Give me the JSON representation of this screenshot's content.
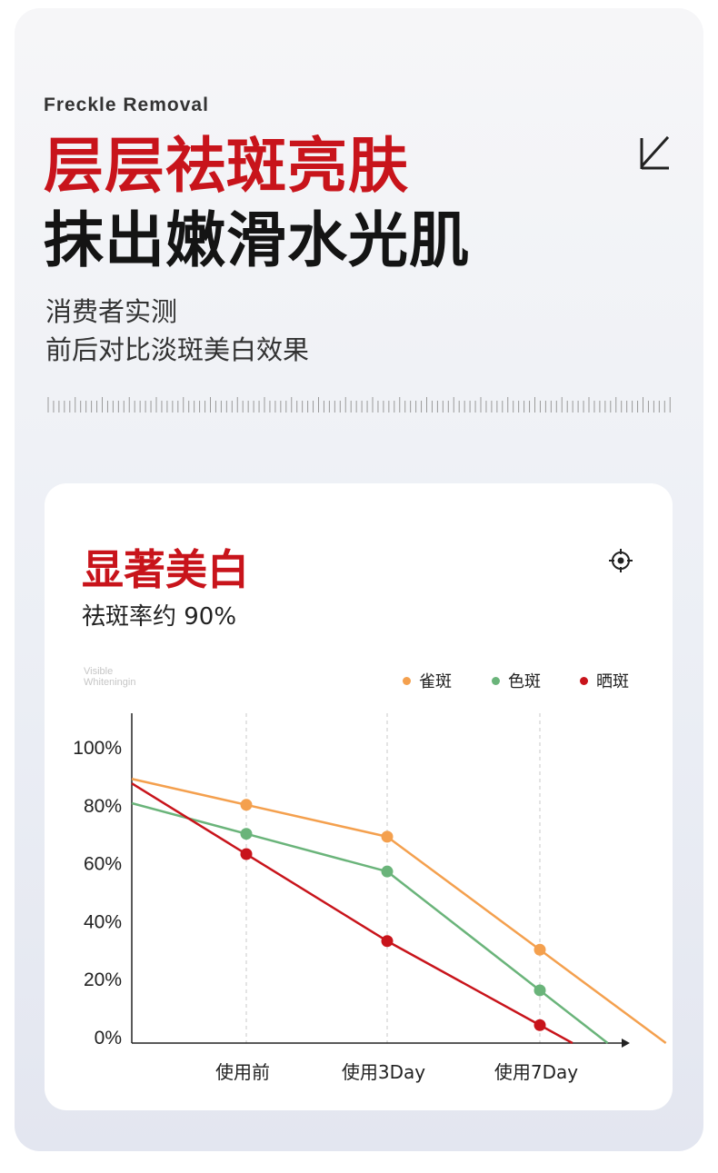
{
  "header": {
    "eyebrow": "Freckle Removal",
    "title_line1": "层层祛斑亮肤",
    "title_line2": "抹出嫩滑水光肌",
    "subtitle_line1": "消费者实测",
    "subtitle_line2": "前后对比淡斑美白效果"
  },
  "card": {
    "title": "显著美白",
    "subtitle": "祛斑率约 90%",
    "watermark_line1": "Visible",
    "watermark_line2": "Whiteningin"
  },
  "colors": {
    "accent_red": "#c8141b",
    "series_orange": "#f4a04e",
    "series_green": "#6ab47a",
    "series_red": "#c8141b"
  },
  "icons": [
    "arrow-down-left-icon",
    "crosshair-icon"
  ],
  "chart_data": {
    "type": "line",
    "categories": [
      "使用前",
      "使用3Day",
      "使用7Day"
    ],
    "yticks": [
      "100%",
      "80%",
      "60%",
      "40%",
      "20%",
      "0%"
    ],
    "ylim": [
      0,
      100
    ],
    "grid": "vertical dashed lines at categories",
    "legend_position": "top-right",
    "series": [
      {
        "name": "雀斑",
        "color": "#f4a04e",
        "values": [
          80,
          69,
          30
        ]
      },
      {
        "name": "色斑",
        "color": "#6ab47a",
        "values": [
          70,
          57,
          16
        ]
      },
      {
        "name": "晒斑",
        "color": "#c8141b",
        "values": [
          63,
          33,
          4
        ]
      }
    ]
  }
}
